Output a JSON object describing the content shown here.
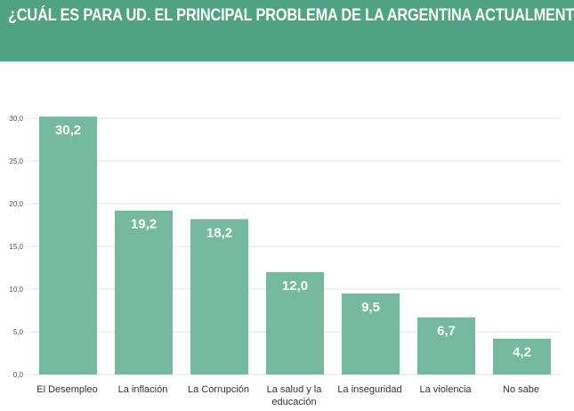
{
  "header": {
    "title": "¿CUÁL ES PARA UD. EL PRINCIPAL PROBLEMA DE LA ARGENTINA ACTUALMENTE?"
  },
  "colors": {
    "header_bg": "#4fa384",
    "bar": "#74b9a0",
    "grid": "#e3e3e3"
  },
  "chart_data": {
    "type": "bar",
    "title": "¿CUÁL ES PARA UD. EL PRINCIPAL PROBLEMA DE LA ARGENTINA ACTUALMENTE?",
    "categories": [
      "El Desempleo",
      "La inflación",
      "La Corrupción",
      "La salud y la educación",
      "La inseguridad",
      "La violencia",
      "No sabe"
    ],
    "category_lines": [
      [
        "El Desempleo"
      ],
      [
        "La inflación"
      ],
      [
        "La Corrupción"
      ],
      [
        "La salud y la",
        "educación"
      ],
      [
        "La inseguridad"
      ],
      [
        "La violencia"
      ],
      [
        "No sabe"
      ]
    ],
    "values": [
      30.2,
      19.2,
      18.2,
      12.0,
      9.5,
      6.7,
      4.2
    ],
    "data_labels": [
      "30,2",
      "19,2",
      "18,2",
      "12,0",
      "9,5",
      "6,7",
      "4,2"
    ],
    "y_ticks": [
      0,
      5,
      10,
      15,
      20,
      25,
      30
    ],
    "y_tick_labels": [
      "0,0",
      "5,0",
      "10,0",
      "15,0",
      "20,0",
      "25,0",
      "30,0"
    ],
    "ylim": [
      0,
      30
    ],
    "xlabel": "",
    "ylabel": "",
    "grid": true,
    "legend": "none"
  }
}
